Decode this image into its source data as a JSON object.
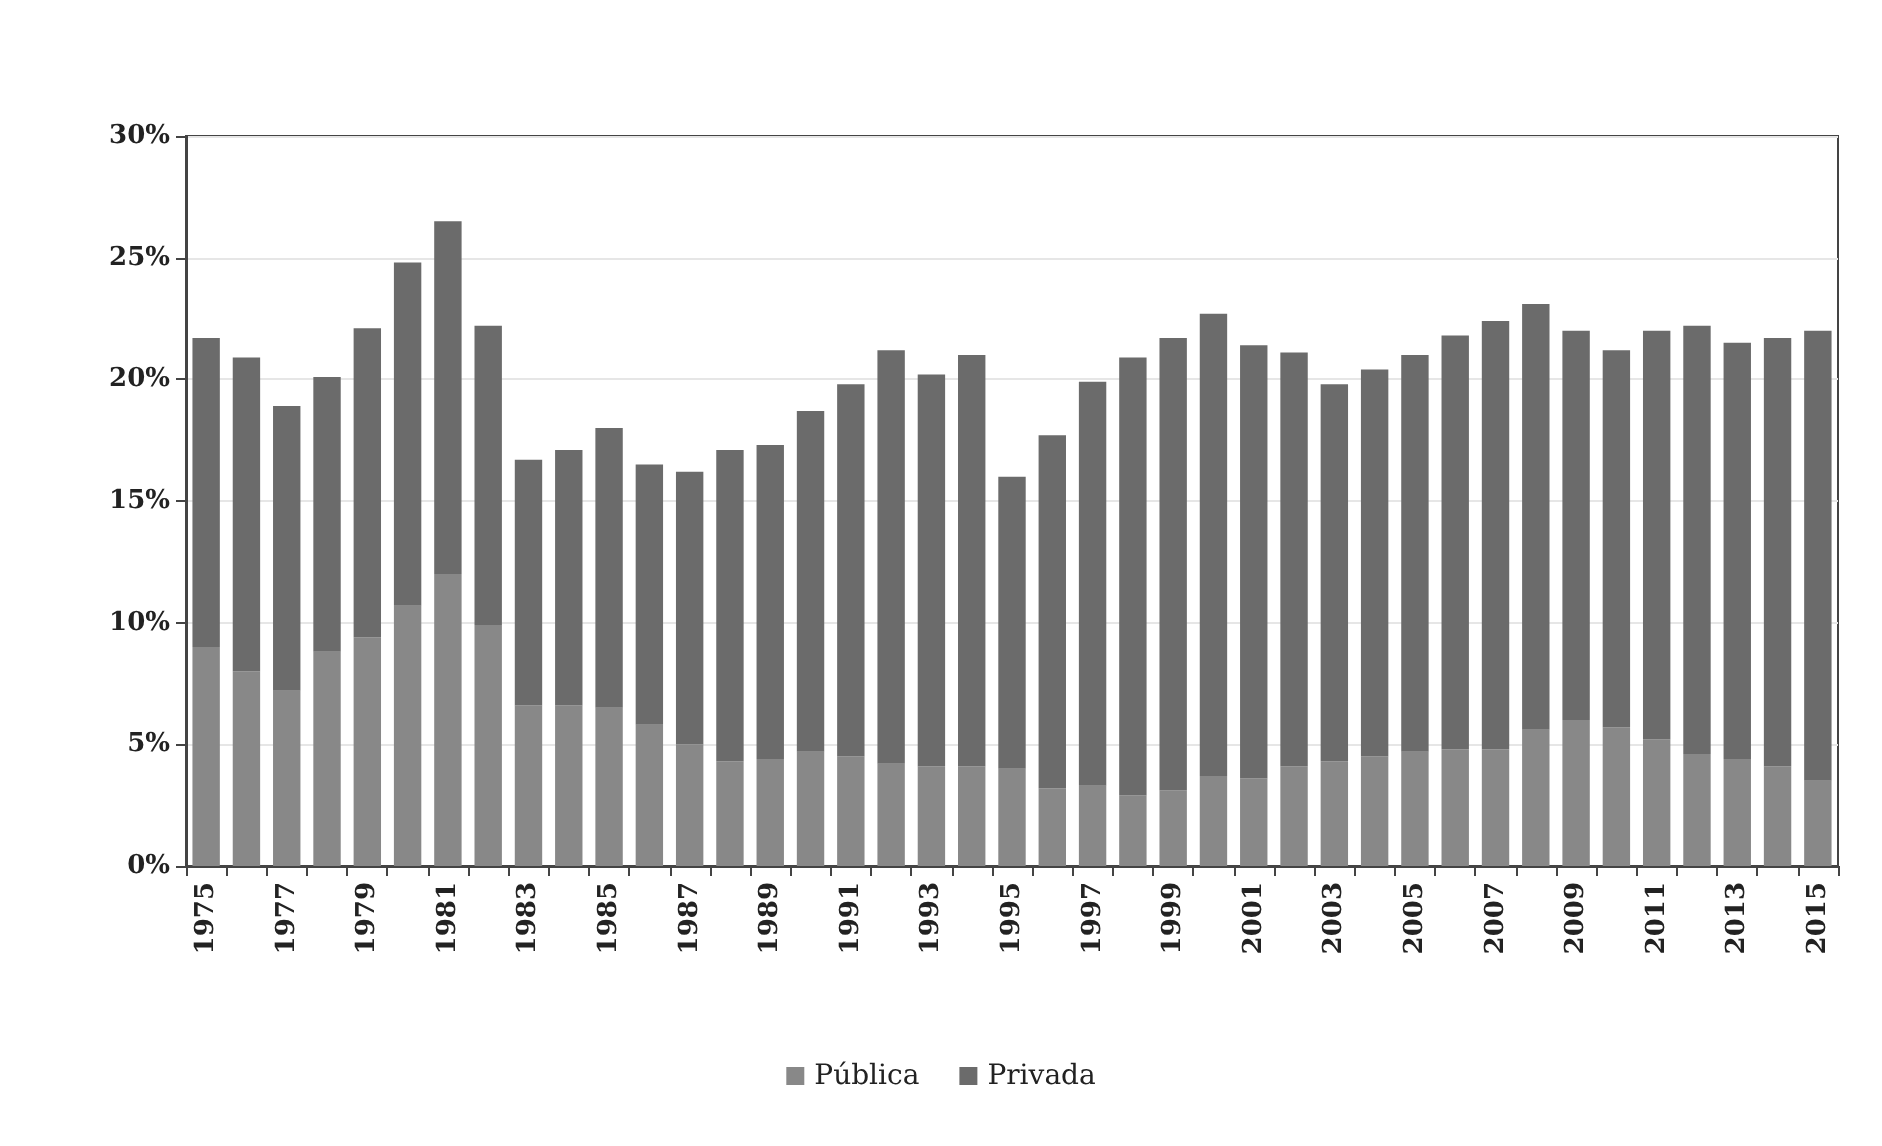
{
  "chart_data": {
    "type": "bar",
    "stacked": true,
    "categories": [
      "1975",
      null,
      "1977",
      null,
      "1979",
      null,
      "1981",
      null,
      "1983",
      null,
      "1985",
      null,
      "1987",
      null,
      "1989",
      null,
      "1991",
      null,
      "1993",
      null,
      "1995",
      null,
      "1997",
      null,
      "1999",
      null,
      "2001",
      null,
      "2003",
      null,
      "2005",
      null,
      "2007",
      null,
      "2009",
      null,
      "2011",
      null,
      "2013",
      null,
      "2015"
    ],
    "series": [
      {
        "name": "Pública",
        "color": "#888888",
        "values": [
          9.0,
          8.0,
          7.2,
          8.8,
          9.4,
          10.7,
          12.0,
          9.9,
          6.6,
          6.6,
          6.5,
          5.8,
          5.0,
          4.3,
          4.4,
          4.7,
          4.5,
          4.2,
          4.1,
          4.1,
          4.0,
          3.2,
          3.3,
          2.9,
          3.1,
          3.7,
          3.6,
          4.1,
          4.3,
          4.5,
          4.7,
          4.8,
          4.8,
          5.6,
          6.0,
          5.7,
          5.2,
          4.6,
          4.4,
          4.1,
          3.5
        ]
      },
      {
        "name": "Privada",
        "color": "#6b6b6b",
        "values": [
          12.7,
          12.9,
          11.7,
          11.3,
          12.7,
          14.1,
          14.5,
          12.3,
          10.1,
          10.5,
          11.5,
          10.7,
          11.2,
          12.8,
          12.9,
          14.0,
          15.3,
          17.0,
          16.1,
          16.9,
          12.0,
          14.5,
          16.6,
          18.0,
          18.6,
          19.0,
          17.8,
          17.0,
          15.5,
          15.9,
          16.3,
          17.0,
          17.6,
          17.5,
          16.0,
          15.5,
          16.8,
          17.6,
          17.1,
          17.6,
          18.5
        ]
      }
    ],
    "ylim": [
      0,
      30
    ],
    "yticks": [
      {
        "value": 0,
        "label": "0%"
      },
      {
        "value": 5,
        "label": "5%"
      },
      {
        "value": 10,
        "label": "10%"
      },
      {
        "value": 15,
        "label": "15%"
      },
      {
        "value": 20,
        "label": "20%"
      },
      {
        "value": 25,
        "label": "25%"
      },
      {
        "value": 30,
        "label": "30%"
      }
    ],
    "grid": "y",
    "legend": "bottom"
  }
}
